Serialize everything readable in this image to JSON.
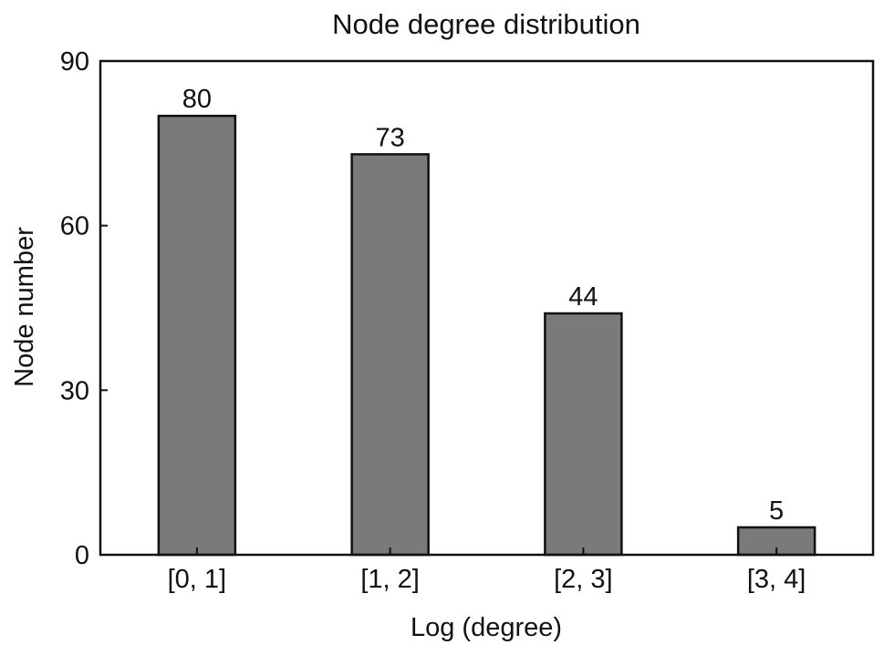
{
  "chart_data": {
    "type": "bar",
    "title": "Node degree distribution",
    "xlabel": "Log (degree)",
    "ylabel": "Node number",
    "categories": [
      "[0, 1]",
      "[1, 2]",
      "[2, 3]",
      "[3, 4]"
    ],
    "values": [
      80,
      73,
      44,
      5
    ],
    "data_labels": [
      "80",
      "73",
      "44",
      "5"
    ],
    "ylim": [
      0,
      90
    ],
    "yticks": [
      0,
      30,
      60,
      90
    ],
    "ytick_labels": [
      "0",
      "30",
      "60",
      "90"
    ],
    "grid": false,
    "legend": "none",
    "colors": {
      "bar_fill": "#7a7a7a",
      "bar_stroke": "#111111",
      "axis": "#111111",
      "text": "#111111"
    }
  }
}
